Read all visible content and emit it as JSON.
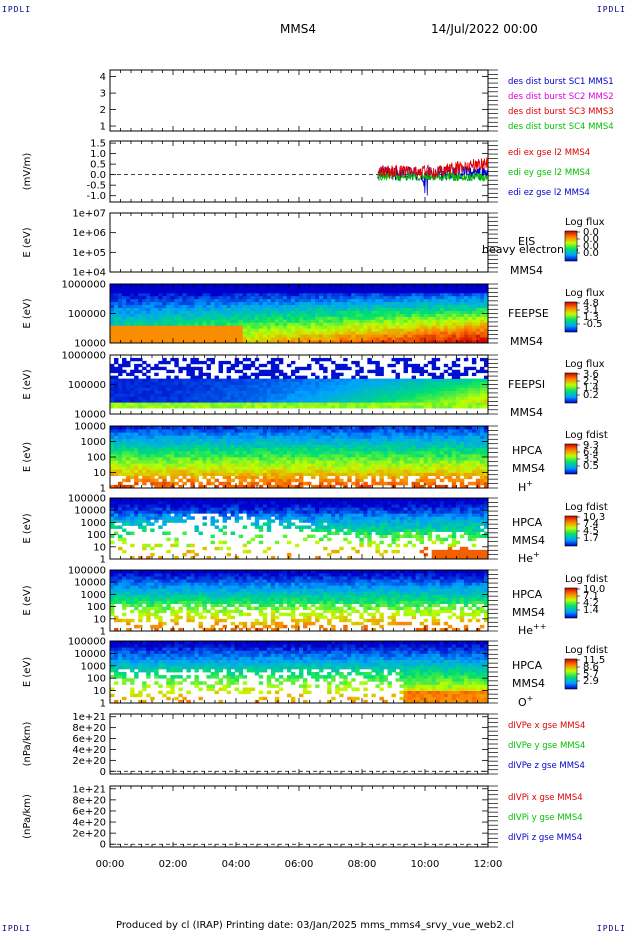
{
  "header": {
    "corner_tl": "IPDLI",
    "corner_tr": "IPDLI",
    "corner_bl": "IPDLI",
    "corner_br": "IPDLI",
    "title": "MMS4",
    "datetime": "14/Jul/2022 00:00"
  },
  "footer": "Produced by cl (IRAP)   Printing date: 03/Jan/2025   mms_mms4_srvy_vue_web2.cl",
  "colors": {
    "red": "#e00000",
    "green": "#00c000",
    "blue": "#0000cc",
    "magenta": "#e000e0",
    "spec_low": "#0000cc",
    "spec_high": "#cc0000"
  },
  "chart_data": {
    "type": "multi-panel time series / spectrogram",
    "x_ticks": [
      "00:00",
      "02:00",
      "04:00",
      "06:00",
      "08:00",
      "10:00",
      "12:00"
    ],
    "xlim": [
      "00:00",
      "12:00"
    ],
    "panels": [
      {
        "id": "p1",
        "type": "line",
        "ylabel": "",
        "yticks": [
          "1",
          "2",
          "3",
          "4"
        ],
        "ylim": [
          0.7,
          4.4
        ],
        "legend": [
          {
            "text": "des dist burst SC1 MMS1",
            "color": "#0000cc"
          },
          {
            "text": "des dist burst SC2 MMS2",
            "color": "#e000e0"
          },
          {
            "text": "des dist burst SC3 MMS3",
            "color": "#e00000"
          },
          {
            "text": "des dist burst SC4 MMS4",
            "color": "#00c000"
          }
        ]
      },
      {
        "id": "p2",
        "type": "line",
        "ylabel": "(mV/m)",
        "yticks": [
          "-1.0",
          "-0.5",
          "0.0",
          "0.5",
          "1.0",
          "1.5"
        ],
        "ylim": [
          -1.3,
          1.6
        ],
        "legend": [
          {
            "text": "edi ex gse l2 MMS4",
            "color": "#e00000"
          },
          {
            "text": "edi ey gse l2 MMS4",
            "color": "#00c000"
          },
          {
            "text": "edi ez gse l2 MMS4",
            "color": "#0000cc"
          }
        ],
        "data_range": [
          "08:30",
          "12:00"
        ]
      },
      {
        "id": "p3",
        "type": "heatmap",
        "ylabel": "E (eV)",
        "yticks": [
          "1e+04",
          "1e+05",
          "1e+06",
          "1e+07"
        ],
        "labels": [
          "EIS",
          "MMS4"
        ],
        "overlay": "heavy electron to",
        "cbar_title": "Log flux",
        "cbar_ticks": [
          "0.0",
          "0.0",
          "0.0",
          "0.0"
        ],
        "empty": true
      },
      {
        "id": "p4",
        "type": "heatmap",
        "ylabel": "E (eV)",
        "yticks": [
          "10000",
          "100000",
          "1000000"
        ],
        "labels": [
          "FEEPSE",
          "MMS4"
        ],
        "cbar_title": "Log flux",
        "cbar_ticks": [
          "4.8",
          "3.1",
          "1.3",
          "-0.5"
        ]
      },
      {
        "id": "p5",
        "type": "heatmap",
        "ylabel": "E (eV)",
        "yticks": [
          "10000",
          "100000",
          "1000000"
        ],
        "labels": [
          "FEEPSI",
          "MMS4"
        ],
        "cbar_title": "Log flux",
        "cbar_ticks": [
          "3.6",
          "2.5",
          "1.4",
          "0.2"
        ]
      },
      {
        "id": "p6",
        "type": "heatmap",
        "ylabel": "E (eV)",
        "yticks": [
          "1",
          "10",
          "100",
          "1000",
          "10000"
        ],
        "labels": [
          "HPCA",
          "MMS4",
          "H+"
        ],
        "cbar_title": "Log fdist",
        "cbar_ticks": [
          "9.3",
          "6.4",
          "3.5",
          "0.5"
        ]
      },
      {
        "id": "p7",
        "type": "heatmap",
        "ylabel": "E (eV)",
        "yticks": [
          "1",
          "10",
          "100",
          "1000",
          "10000",
          "100000"
        ],
        "labels": [
          "HPCA",
          "MMS4",
          "He+"
        ],
        "cbar_title": "Log fdist",
        "cbar_ticks": [
          "10.3",
          "7.4",
          "4.5",
          "1.7"
        ]
      },
      {
        "id": "p8",
        "type": "heatmap",
        "ylabel": "E (eV)",
        "yticks": [
          "1",
          "10",
          "100",
          "1000",
          "10000",
          "100000"
        ],
        "labels": [
          "HPCA",
          "MMS4",
          "He++"
        ],
        "cbar_title": "Log fdist",
        "cbar_ticks": [
          "10.0",
          "7.1",
          "4.2",
          "1.4"
        ]
      },
      {
        "id": "p9",
        "type": "heatmap",
        "ylabel": "E (eV)",
        "yticks": [
          "1",
          "10",
          "100",
          "1000",
          "10000",
          "100000"
        ],
        "labels": [
          "HPCA",
          "MMS4",
          "O+"
        ],
        "cbar_title": "Log fdist",
        "cbar_ticks": [
          "11.5",
          "8.6",
          "5.7",
          "2.9"
        ]
      },
      {
        "id": "p10",
        "type": "line",
        "ylabel": "(nPa/km)",
        "yticks": [
          "0",
          "2e+20",
          "4e+20",
          "6e+20",
          "8e+20",
          "1e+21"
        ],
        "ylim": [
          -0.05,
          1.05
        ],
        "legend": [
          {
            "text": "dIVPe x gse MMS4",
            "color": "#e00000"
          },
          {
            "text": "dIVPe y gse MMS4",
            "color": "#00c000"
          },
          {
            "text": "dIVPe z gse MMS4",
            "color": "#0000cc"
          }
        ]
      },
      {
        "id": "p11",
        "type": "line",
        "ylabel": "(nPa/km)",
        "yticks": [
          "0",
          "2e+20",
          "4e+20",
          "6e+20",
          "8e+20",
          "1e+21"
        ],
        "ylim": [
          -0.05,
          1.05
        ],
        "legend": [
          {
            "text": "dIVPi x gse MMS4",
            "color": "#e00000"
          },
          {
            "text": "dIVPi y gse MMS4",
            "color": "#00c000"
          },
          {
            "text": "dIVPi z gse MMS4",
            "color": "#0000cc"
          }
        ]
      }
    ]
  }
}
